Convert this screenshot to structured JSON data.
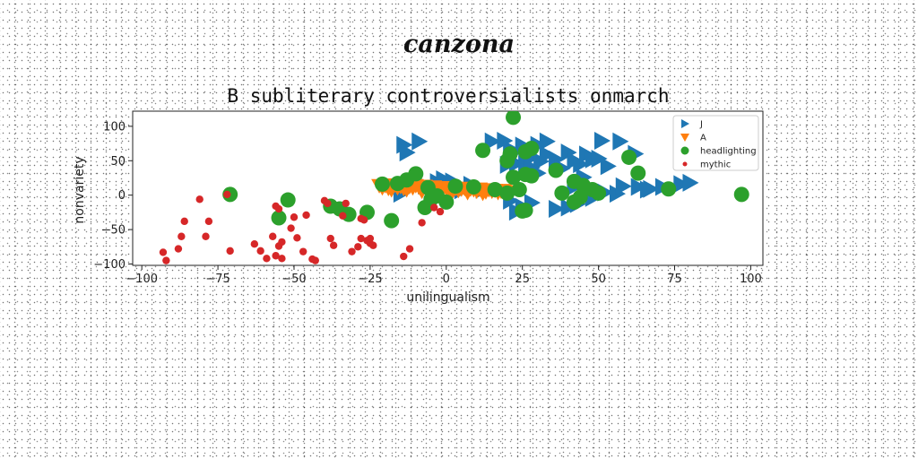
{
  "heading": "canzona",
  "chart_data": {
    "type": "scatter",
    "title": "B subliterary controversialists onmarch",
    "xlabel": "unilingualism",
    "ylabel": "nonvariety",
    "xlim": [
      -103,
      104
    ],
    "ylim": [
      -102,
      122
    ],
    "xticks": [
      -100,
      -75,
      -50,
      -25,
      0,
      25,
      50,
      75,
      100
    ],
    "yticks": [
      -100,
      -50,
      0,
      50,
      100
    ],
    "legend_position": "top-right",
    "grid": false,
    "series": [
      {
        "name": "J",
        "marker": "triangle-right",
        "color": "#1f77b4",
        "points": [
          [
            -14,
            73
          ],
          [
            -13,
            62
          ],
          [
            -9,
            78
          ],
          [
            -15,
            2
          ],
          [
            -7,
            14
          ],
          [
            -3,
            19
          ],
          [
            -1,
            23
          ],
          [
            2,
            20
          ],
          [
            5,
            7
          ],
          [
            8,
            15
          ],
          [
            12,
            8
          ],
          [
            15,
            78
          ],
          [
            19,
            79
          ],
          [
            21,
            67
          ],
          [
            22,
            62
          ],
          [
            25,
            72
          ],
          [
            30,
            73
          ],
          [
            33,
            78
          ],
          [
            28,
            55
          ],
          [
            31,
            49
          ],
          [
            33,
            59
          ],
          [
            20,
            44
          ],
          [
            23,
            46
          ],
          [
            26,
            45
          ],
          [
            28,
            40
          ],
          [
            30,
            32
          ],
          [
            36,
            52
          ],
          [
            40,
            62
          ],
          [
            38,
            39
          ],
          [
            42,
            50
          ],
          [
            44,
            45
          ],
          [
            46,
            59
          ],
          [
            48,
            52
          ],
          [
            50,
            53
          ],
          [
            51,
            79
          ],
          [
            57,
            78
          ],
          [
            62,
            60
          ],
          [
            53,
            42
          ],
          [
            45,
            26
          ],
          [
            42,
            12
          ],
          [
            46,
            5
          ],
          [
            52,
            4
          ],
          [
            56,
            2
          ],
          [
            58,
            13
          ],
          [
            63,
            12
          ],
          [
            67,
            9
          ],
          [
            71,
            12
          ],
          [
            77,
            16
          ],
          [
            80,
            18
          ],
          [
            66,
            8
          ],
          [
            48,
            -4
          ],
          [
            43,
            -13
          ],
          [
            40,
            -18
          ],
          [
            36,
            -20
          ],
          [
            25,
            -17
          ],
          [
            28,
            -11
          ],
          [
            21,
            -8
          ],
          [
            23,
            -24
          ]
        ]
      },
      {
        "name": "A",
        "marker": "triangle-down",
        "color": "#ff7f0e",
        "points": [
          [
            -22,
            14
          ],
          [
            -20,
            14
          ],
          [
            -18,
            13
          ],
          [
            -17,
            15
          ],
          [
            -15,
            13
          ],
          [
            -13,
            14
          ],
          [
            -12,
            13
          ],
          [
            -10,
            14
          ],
          [
            -9,
            12
          ],
          [
            -7,
            13
          ],
          [
            -6,
            11
          ],
          [
            -4,
            12
          ],
          [
            -3,
            10
          ],
          [
            -1,
            11
          ],
          [
            0,
            10
          ],
          [
            2,
            11
          ],
          [
            3,
            10
          ],
          [
            5,
            9
          ],
          [
            6,
            10
          ],
          [
            8,
            9
          ],
          [
            9,
            8
          ],
          [
            11,
            9
          ],
          [
            12,
            7
          ],
          [
            14,
            8
          ],
          [
            15,
            6
          ],
          [
            16,
            7
          ],
          [
            18,
            6
          ],
          [
            19,
            7
          ],
          [
            20,
            5
          ],
          [
            -21,
            11
          ],
          [
            -19,
            10
          ],
          [
            -16,
            11
          ],
          [
            -14,
            10
          ],
          [
            -11,
            11
          ],
          [
            -8,
            9
          ],
          [
            -5,
            9
          ],
          [
            -2,
            8
          ],
          [
            1,
            8
          ],
          [
            4,
            7
          ],
          [
            7,
            6
          ],
          [
            10,
            6
          ],
          [
            13,
            5
          ],
          [
            17,
            4
          ],
          [
            -18,
            8
          ],
          [
            -13,
            8
          ],
          [
            -8,
            6
          ],
          [
            -3,
            6
          ],
          [
            2,
            5
          ],
          [
            7,
            4
          ],
          [
            12,
            3
          ]
        ]
      },
      {
        "name": "headlighting",
        "marker": "circle-large",
        "color": "#2ca02c",
        "points": [
          [
            22,
            113
          ],
          [
            26,
            63
          ],
          [
            28,
            68
          ],
          [
            21,
            60
          ],
          [
            20,
            50
          ],
          [
            12,
            65
          ],
          [
            22,
            26
          ],
          [
            26,
            30
          ],
          [
            28,
            28
          ],
          [
            36,
            36
          ],
          [
            60,
            55
          ],
          [
            63,
            32
          ],
          [
            42,
            20
          ],
          [
            45,
            14
          ],
          [
            48,
            8
          ],
          [
            50,
            3
          ],
          [
            38,
            3
          ],
          [
            44,
            -3
          ],
          [
            42,
            -10
          ],
          [
            73,
            9
          ],
          [
            97,
            1
          ],
          [
            -71,
            1
          ],
          [
            -21,
            16
          ],
          [
            -16,
            17
          ],
          [
            -13,
            22
          ],
          [
            -10,
            31
          ],
          [
            -6,
            11
          ],
          [
            -7,
            -18
          ],
          [
            -5,
            -6
          ],
          [
            -3,
            -1
          ],
          [
            0,
            -10
          ],
          [
            3,
            13
          ],
          [
            9,
            12
          ],
          [
            16,
            8
          ],
          [
            24,
            8
          ],
          [
            20,
            3
          ],
          [
            -35,
            -20
          ],
          [
            -32,
            -28
          ],
          [
            -38,
            -16
          ],
          [
            -26,
            -25
          ],
          [
            -18,
            -37
          ],
          [
            -55,
            -33
          ],
          [
            -52,
            -7
          ],
          [
            26,
            -22
          ],
          [
            25,
            -23
          ]
        ]
      },
      {
        "name": "mythic",
        "marker": "circle-small",
        "color": "#d62728",
        "points": [
          [
            -93,
            -83
          ],
          [
            -92,
            -95
          ],
          [
            -88,
            -78
          ],
          [
            -87,
            -60
          ],
          [
            -86,
            -38
          ],
          [
            -81,
            -6
          ],
          [
            -79,
            -60
          ],
          [
            -78,
            -38
          ],
          [
            -72,
            1
          ],
          [
            -71,
            -81
          ],
          [
            -63,
            -71
          ],
          [
            -61,
            -81
          ],
          [
            -59,
            -92
          ],
          [
            -57,
            -60
          ],
          [
            -56,
            -88
          ],
          [
            -55,
            -74
          ],
          [
            -54,
            -68
          ],
          [
            -54,
            -92
          ],
          [
            -56,
            -16
          ],
          [
            -55,
            -20
          ],
          [
            -51,
            -48
          ],
          [
            -50,
            -32
          ],
          [
            -49,
            -62
          ],
          [
            -47,
            -82
          ],
          [
            -46,
            -29
          ],
          [
            -44,
            -93
          ],
          [
            -43,
            -95
          ],
          [
            -40,
            -8
          ],
          [
            -39,
            -12
          ],
          [
            -38,
            -63
          ],
          [
            -37,
            -73
          ],
          [
            -34,
            -30
          ],
          [
            -33,
            -12
          ],
          [
            -31,
            -82
          ],
          [
            -29,
            -75
          ],
          [
            -28,
            -34
          ],
          [
            -27,
            -36
          ],
          [
            -26,
            -66
          ],
          [
            -25,
            -70
          ],
          [
            -24,
            -73
          ],
          [
            -28,
            -63
          ],
          [
            -25,
            -63
          ],
          [
            -14,
            -89
          ],
          [
            -12,
            -78
          ],
          [
            -8,
            -40
          ],
          [
            -4,
            -18
          ],
          [
            -2,
            -24
          ]
        ]
      }
    ]
  }
}
